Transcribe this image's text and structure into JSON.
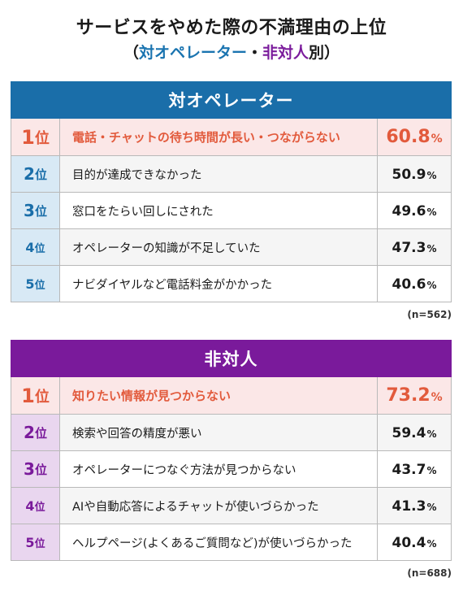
{
  "title": "サービスをやめた際の不満理由の上位",
  "subtitle": {
    "open": "（",
    "part1": "対オペレーター",
    "sep": "・",
    "part2": "非対人",
    "tail": "別）"
  },
  "rank_unit": "位",
  "pct_unit": "%",
  "chart_data": [
    {
      "type": "table",
      "title": "対オペレーター",
      "sample": "(n=562)",
      "rows": [
        {
          "rank": "1",
          "reason": "電話・チャットの待ち時間が長い・つながらない",
          "value": 60.8
        },
        {
          "rank": "2",
          "reason": "目的が達成できなかった",
          "value": 50.9
        },
        {
          "rank": "3",
          "reason": "窓口をたらい回しにされた",
          "value": 49.6
        },
        {
          "rank": "4",
          "reason": "オペレーターの知識が不足していた",
          "value": 47.3
        },
        {
          "rank": "5",
          "reason": "ナビダイヤルなど電話料金がかかった",
          "value": 40.6
        }
      ]
    },
    {
      "type": "table",
      "title": "非対人",
      "sample": "(n=688)",
      "rows": [
        {
          "rank": "1",
          "reason": "知りたい情報が見つからない",
          "value": 73.2
        },
        {
          "rank": "2",
          "reason": "検索や回答の精度が悪い",
          "value": 59.4
        },
        {
          "rank": "3",
          "reason": "オペレーターにつなぐ方法が見つからない",
          "value": 43.7
        },
        {
          "rank": "4",
          "reason": "AIや自動応答によるチャットが使いづらかった",
          "value": 41.3
        },
        {
          "rank": "5",
          "reason": "ヘルプページ(よくあるご質問など)が使いづらかった",
          "value": 40.4
        }
      ]
    }
  ]
}
